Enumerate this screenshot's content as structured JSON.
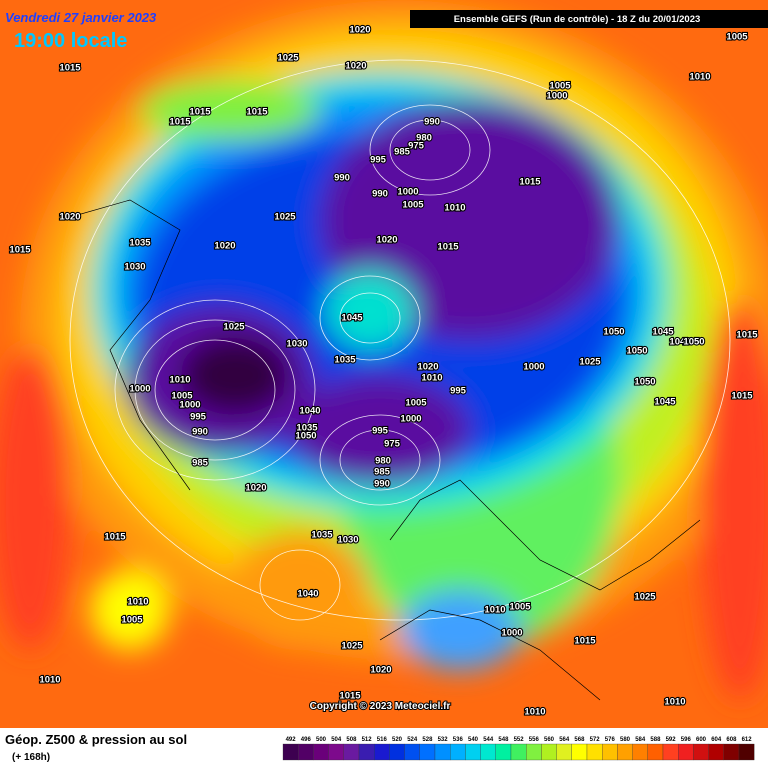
{
  "header": {
    "date": "Vendredi 27 janvier 2023",
    "time": "19:00 locale",
    "model": "Ensemble GEFS  (Run de contrôle)  -  18 Z du 20/01/2023"
  },
  "pressure_labels": [
    1020,
    1025,
    1020,
    1015,
    1015,
    1015,
    1015,
    1005,
    1010,
    1005,
    1000,
    990,
    980,
    975,
    985,
    995,
    990,
    990,
    1000,
    1005,
    1010,
    1015,
    1020,
    1025,
    1020,
    1035,
    1030,
    1015,
    1020,
    1015,
    1045,
    1025,
    1030,
    1035,
    1050,
    1045,
    1040,
    1050,
    1015,
    1050,
    1025,
    1000,
    1020,
    1010,
    995,
    1050,
    1015,
    1045,
    1010,
    1000,
    1005,
    1000,
    995,
    990,
    985,
    1040,
    1035,
    1050,
    1005,
    1000,
    995,
    975,
    980,
    985,
    990,
    1020,
    1015,
    1035,
    1030,
    1010,
    1005,
    1040,
    1025,
    1010,
    1005,
    1000,
    1015,
    1025,
    1020,
    1010,
    1015,
    1010,
    1010
  ],
  "copyright": "Copyright © 2023 Meteociel.fr",
  "footer": {
    "title": "Géop. Z500 & pression au sol",
    "lead": "(+ 168h)"
  },
  "legend": {
    "values": [
      492,
      496,
      500,
      504,
      508,
      512,
      516,
      520,
      524,
      528,
      532,
      536,
      540,
      544,
      548,
      552,
      556,
      560,
      564,
      568,
      572,
      576,
      580,
      584,
      588,
      592,
      596,
      600,
      604,
      608,
      612
    ],
    "colors": [
      "#3d0050",
      "#520066",
      "#6a007a",
      "#7d0a8c",
      "#6a1aa0",
      "#3a1db0",
      "#1a1ad0",
      "#0030e0",
      "#0050f0",
      "#0070ff",
      "#0090ff",
      "#00b0ff",
      "#00d0f0",
      "#00e8d0",
      "#00f0a0",
      "#40f060",
      "#80f040",
      "#b0f020",
      "#e0f020",
      "#ffff00",
      "#ffe000",
      "#ffc000",
      "#ffa000",
      "#ff8000",
      "#ff6000",
      "#ff4020",
      "#f02020",
      "#d01010",
      "#b00000",
      "#800000",
      "#500000"
    ]
  }
}
